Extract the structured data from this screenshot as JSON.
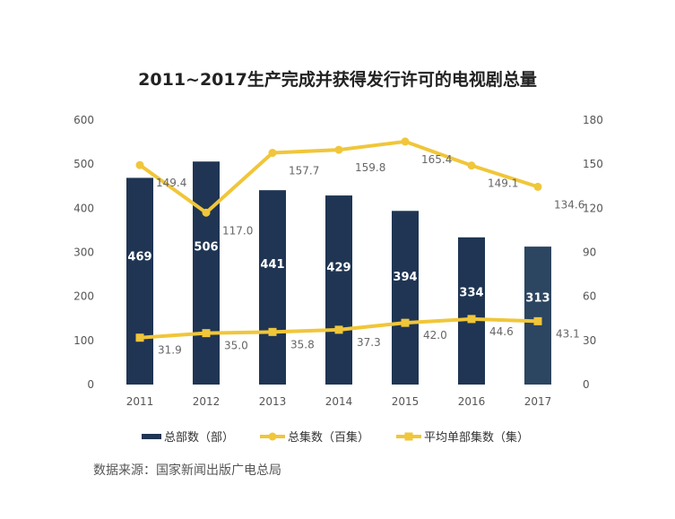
{
  "chart_data": {
    "type": "bar+line",
    "title": "2011~2017生产完成并获得发行许可的电视剧总量",
    "categories": [
      "2011",
      "2012",
      "2013",
      "2014",
      "2015",
      "2016",
      "2017"
    ],
    "left_axis": {
      "ylim": [
        0,
        600
      ],
      "ticks": [
        "0",
        "100",
        "200",
        "300",
        "400",
        "500",
        "600"
      ]
    },
    "right_axis": {
      "ylim": [
        0,
        180
      ],
      "ticks": [
        "0",
        "30",
        "60",
        "90",
        "120",
        "150",
        "180"
      ]
    },
    "series": [
      {
        "name": "总部数（部）",
        "type": "bar",
        "axis": "left",
        "values": [
          469,
          506,
          441,
          429,
          394,
          334,
          313
        ],
        "labels": [
          "469",
          "506",
          "441",
          "429",
          "394",
          "334",
          "313"
        ]
      },
      {
        "name": "总集数（百集）",
        "type": "line",
        "axis": "right",
        "values": [
          149.4,
          117.0,
          157.7,
          159.8,
          165.4,
          149.1,
          134.6
        ],
        "labels": [
          "149.4",
          "117.0",
          "157.7",
          "159.8",
          "165.4",
          "149.1",
          "134.6"
        ]
      },
      {
        "name": "平均单部集数（集）",
        "type": "line",
        "axis": "right",
        "values": [
          31.9,
          35.0,
          35.8,
          37.3,
          42.0,
          44.6,
          43.1
        ],
        "labels": [
          "31.9",
          "35.0",
          "35.8",
          "37.3",
          "42.0",
          "44.6",
          "43.1"
        ]
      }
    ],
    "legend_position": "bottom"
  },
  "colors": {
    "bar": "#1f3553",
    "bar_last": "#2c4560",
    "line": "#f0c63a",
    "label_dark": "#666666",
    "axis_text": "#555555"
  },
  "source": "数据来源：国家新闻出版广电总局"
}
